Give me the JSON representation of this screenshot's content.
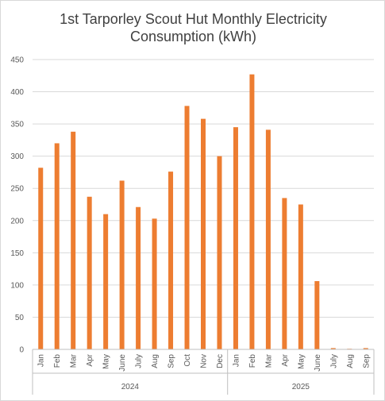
{
  "chart_data": {
    "type": "bar",
    "title_line1": "1st Tarporley Scout Hut Monthly Electricity",
    "title_line2": "Consumption (kWh)",
    "xlabel": "",
    "ylabel": "",
    "ylim": [
      0,
      450
    ],
    "yticks": [
      0,
      50,
      100,
      150,
      200,
      250,
      300,
      350,
      400,
      450
    ],
    "grid": true,
    "bar_color": "#ED7D31",
    "categories": [
      "Jan",
      "Feb",
      "Mar",
      "Apr",
      "May",
      "June",
      "July",
      "Aug",
      "Sep",
      "Oct",
      "Nov",
      "Dec",
      "Jan",
      "Feb",
      "Mar",
      "Apr",
      "May",
      "June",
      "July",
      "Aug",
      "Sep"
    ],
    "groups": [
      {
        "label": "2024",
        "count": 12
      },
      {
        "label": "2025",
        "count": 9
      }
    ],
    "values": [
      282,
      320,
      338,
      237,
      210,
      262,
      221,
      203,
      276,
      378,
      358,
      300,
      345,
      427,
      341,
      235,
      225,
      106,
      2,
      1,
      2
    ]
  }
}
